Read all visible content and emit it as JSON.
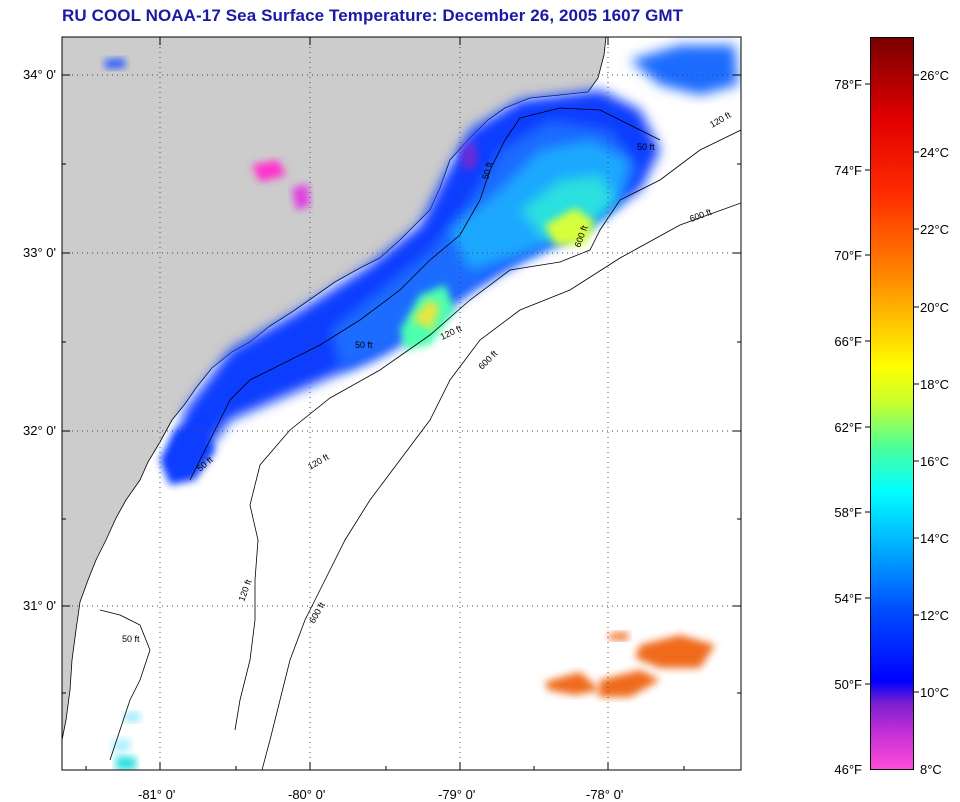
{
  "title": "RU COOL  NOAA-17  Sea Surface Temperature:  December 26, 2005 1607 GMT",
  "lat_labels": [
    "34° 0'",
    "33° 0'",
    "32° 0'",
    "31° 0'"
  ],
  "lon_labels": [
    "-81° 0'",
    "-80° 0'",
    "-79° 0'",
    "-78° 0'"
  ],
  "contour_labels": {
    "c50_north": "50 ft",
    "c120_north": "120 ft",
    "c600_north": "600 ft",
    "c50_mid": "50 ft",
    "c120_mid": "120 ft",
    "c600_mid": "600 ft",
    "c50_south": "50 ft",
    "c120_south": "120 ft",
    "c600_south": "600 ft",
    "c50_sw": "50 ft",
    "c120_sw": "120 ft",
    "c600_sw": "600 ft",
    "c50_low": "50 ft"
  },
  "colorbar": {
    "fahrenheit": [
      "78°F",
      "74°F",
      "70°F",
      "66°F",
      "62°F",
      "58°F",
      "54°F",
      "50°F",
      "46°F"
    ],
    "celsius": [
      "26°C",
      "24°C",
      "22°C",
      "20°C",
      "18°C",
      "16°C",
      "14°C",
      "12°C",
      "10°C",
      "8°C"
    ],
    "range_celsius": [
      8,
      27
    ]
  },
  "colors": {
    "land": "#cccccc",
    "ocean_clouds": "#ffffff",
    "title": "#1a1aa6"
  }
}
